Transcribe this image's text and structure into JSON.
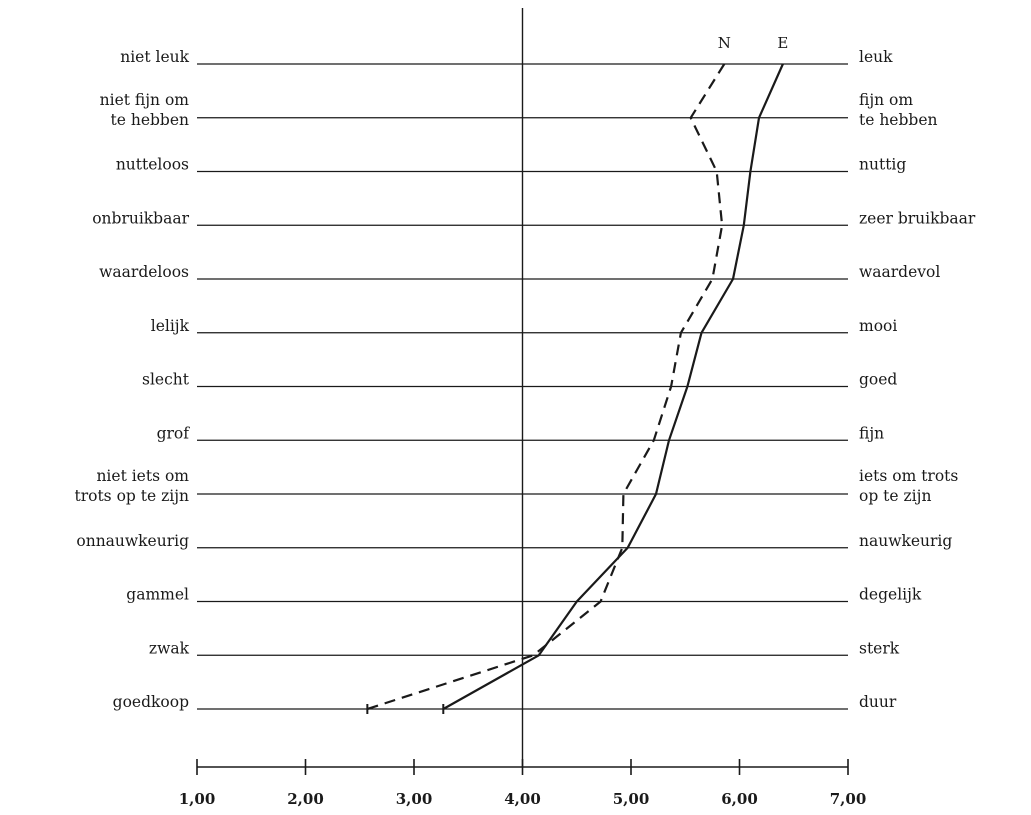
{
  "chart_data": {
    "type": "line",
    "title": "",
    "xlabel": "",
    "ylabel": "",
    "xlim": [
      1,
      7
    ],
    "xticks": [
      1,
      2,
      3,
      4,
      5,
      6,
      7
    ],
    "xtick_labels": [
      "1,00",
      "2,00",
      "3,00",
      "4,00",
      "5,00",
      "6,00",
      "7,00"
    ],
    "reference_line": 4,
    "grid": true,
    "items": [
      {
        "left": [
          "niet leuk"
        ],
        "right": [
          "leuk"
        ]
      },
      {
        "left": [
          "niet fijn om",
          "te hebben"
        ],
        "right": [
          "fijn om",
          "te hebben"
        ]
      },
      {
        "left": [
          "nutteloos"
        ],
        "right": [
          "nuttig"
        ]
      },
      {
        "left": [
          "onbruikbaar"
        ],
        "right": [
          "zeer bruikbaar"
        ]
      },
      {
        "left": [
          "waardeloos"
        ],
        "right": [
          "waardevol"
        ]
      },
      {
        "left": [
          "lelijk"
        ],
        "right": [
          "mooi"
        ]
      },
      {
        "left": [
          "slecht"
        ],
        "right": [
          "goed"
        ]
      },
      {
        "left": [
          "grof"
        ],
        "right": [
          "fijn"
        ]
      },
      {
        "left": [
          "niet iets om",
          "trots op te zijn"
        ],
        "right": [
          "iets om trots",
          "op te zijn"
        ]
      },
      {
        "left": [
          "onnauwkeurig"
        ],
        "right": [
          "nauwkeurig"
        ]
      },
      {
        "left": [
          "gammel"
        ],
        "right": [
          "degelijk"
        ]
      },
      {
        "left": [
          "zwak"
        ],
        "right": [
          "sterk"
        ]
      },
      {
        "left": [
          "goedkoop"
        ],
        "right": [
          "duur"
        ]
      }
    ],
    "series": [
      {
        "name": "N",
        "style": "dashed",
        "color": "#1a1a1a",
        "values": [
          5.86,
          5.55,
          5.79,
          5.84,
          5.75,
          5.46,
          5.37,
          5.21,
          4.93,
          4.92,
          4.72,
          4.1,
          2.57
        ]
      },
      {
        "name": "E",
        "style": "solid",
        "color": "#1a1a1a",
        "values": [
          6.4,
          6.18,
          6.1,
          6.04,
          5.94,
          5.65,
          5.52,
          5.35,
          5.23,
          4.97,
          4.5,
          4.15,
          3.27
        ]
      }
    ]
  }
}
